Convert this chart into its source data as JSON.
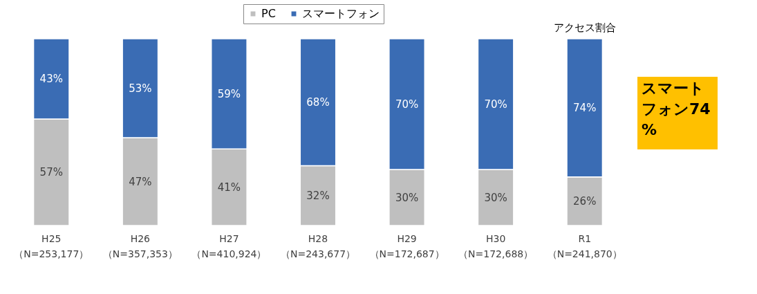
{
  "chart_data": {
    "type": "bar",
    "stacked": true,
    "legend": "top",
    "categories": [
      "H25\n（N=253,177）",
      "H26\n（N=357,353）",
      "H27\n（N=410,924）",
      "H28\n（N=243,677）",
      "H29\n（N=172,687）",
      "H30\n（N=172,688）",
      "R1\n（N=241,870）"
    ],
    "series": [
      {
        "name": "PC",
        "color": "#bfbfbf",
        "values": [
          57,
          47,
          41,
          32,
          30,
          30,
          26
        ],
        "value_labels": [
          "57%",
          "47%",
          "41%",
          "32%",
          "30%",
          "30%",
          "26%"
        ]
      },
      {
        "name": "スマートフォン",
        "color": "#3a6cb4",
        "values": [
          43,
          53,
          59,
          68,
          70,
          70,
          74
        ],
        "value_labels": [
          "43%",
          "53%",
          "59%",
          "68%",
          "70%",
          "70%",
          "74%"
        ]
      }
    ],
    "annotations": [
      "アクセス割合",
      "スマートフォン74%"
    ]
  }
}
